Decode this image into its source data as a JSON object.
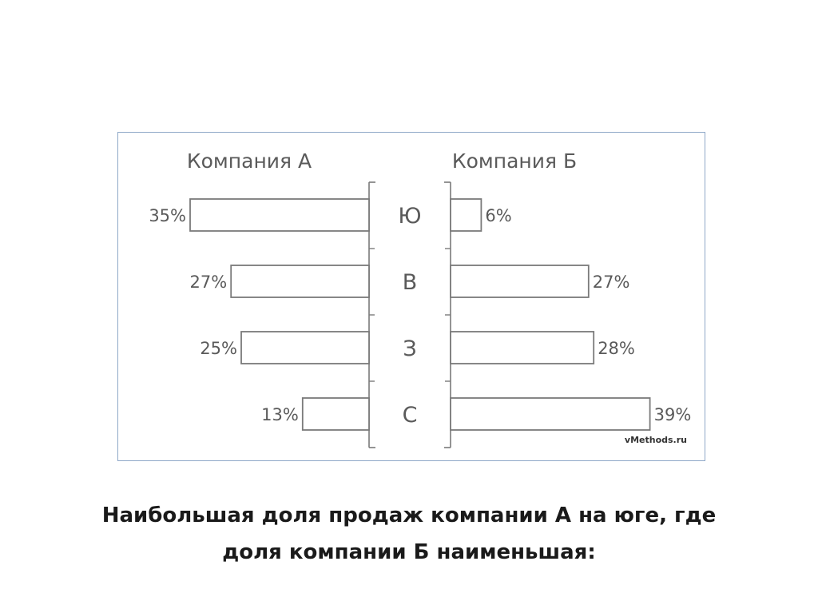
{
  "chart_data": {
    "type": "bar",
    "orientation": "horizontal-butterfly",
    "categories": [
      "Ю",
      "В",
      "З",
      "С"
    ],
    "series": [
      {
        "name": "Компания А",
        "values": [
          35,
          27,
          25,
          13
        ],
        "labels": [
          "35%",
          "27%",
          "25%",
          "13%"
        ],
        "side": "left"
      },
      {
        "name": "Компания Б",
        "values": [
          6,
          27,
          28,
          39
        ],
        "labels": [
          "6%",
          "27%",
          "28%",
          "39%"
        ],
        "side": "right"
      }
    ],
    "unit": "%",
    "watermark": "vMethods.ru",
    "grid": false,
    "bar_fill": "#ffffff",
    "bar_stroke": "#7a7a7a",
    "text_color": "#5a5a5a"
  },
  "caption": {
    "line1": "Наибольшая доля продаж компании А на юге, где",
    "line2": "доля компании Б наименьшая:"
  }
}
